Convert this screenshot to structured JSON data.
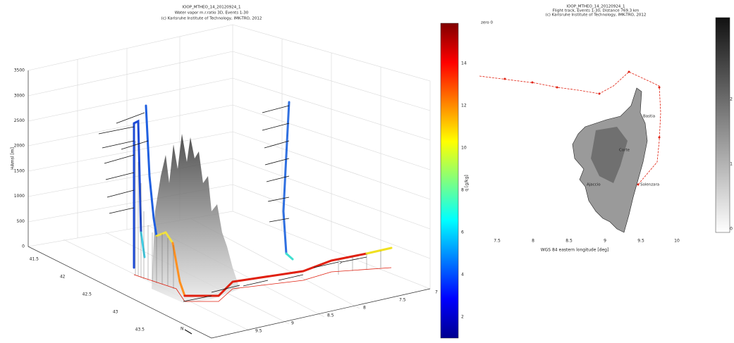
{
  "left_figure": {
    "title_lines": [
      "IOOP_MTHEO_14_20120924_1",
      "Water vapor m.r.ratio 3D, Events 1-30",
      "(c) Karlsruhe Institute of Technology, IMK-TRO, 2012"
    ],
    "z_axis_label": "HAmsl [m]",
    "z_ticks": [
      "0",
      "500",
      "1000",
      "1500",
      "2000",
      "2500",
      "3000",
      "3500"
    ],
    "lat_ticks": [
      "41.5",
      "42",
      "42.5",
      "43",
      "43.5"
    ],
    "lon_ticks": [
      "9.5",
      "9",
      "8.5",
      "8",
      "7.5",
      "7"
    ],
    "north_label": "N",
    "colorbar_label": "q [g/kg]",
    "colorbar_ticks": [
      "2",
      "4",
      "6",
      "8",
      "10",
      "12",
      "14"
    ]
  },
  "right_figure": {
    "title_lines": [
      "IOOP_MTHEO_14_20120924_1",
      "Flight track, Events 1-30, Distance 769.3 km",
      "(c) Karlsruhe Institute of Technology, IMK-TRO, 2012"
    ],
    "corner_label": "zero 0",
    "places": [
      "Bastia",
      "Corte",
      "Ajaccio",
      "Solenzara"
    ],
    "x_ticks": [
      "7.5",
      "8",
      "8.5",
      "9",
      "9.5",
      "10"
    ],
    "x_axis_label": "WGS 84 eastern longitude [deg]",
    "colorbar_ticks": [
      "0",
      "1",
      "2"
    ]
  }
}
